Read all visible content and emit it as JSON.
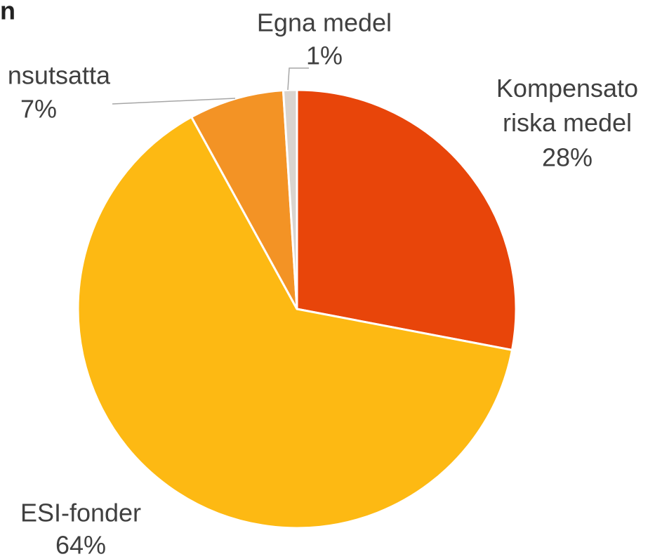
{
  "chart_data": {
    "type": "pie",
    "title": "n",
    "categories": [
      "Kompensato\nriska medel",
      "ESI-fonder",
      "nsutsatta",
      "Egna medel"
    ],
    "values": [
      28,
      64,
      7,
      1
    ],
    "value_labels": [
      "28%",
      "64%",
      "7%",
      "1%"
    ],
    "colors": [
      "#e8450a",
      "#fdb913",
      "#f39325",
      "#d9d4cf"
    ]
  }
}
